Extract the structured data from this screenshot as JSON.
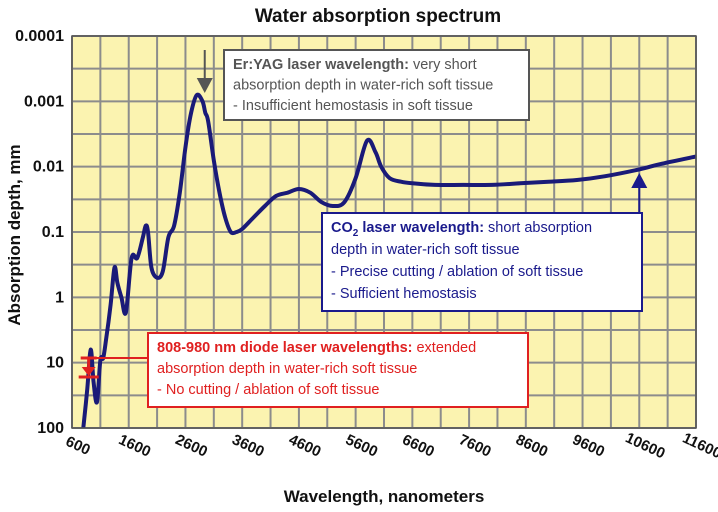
{
  "chart_data": {
    "type": "line",
    "title": "Water absorption spectrum",
    "xlabel": "Wavelength, nanometers",
    "ylabel": "Absorption depth, mm",
    "xlim": [
      600,
      11600
    ],
    "ylim": [
      0.0001,
      100
    ],
    "y_scale": "log",
    "y_axis_inverted": true,
    "grid": true,
    "background_color": "#fbf3b0",
    "grid_color": "#8c8c8c",
    "line_color": "#1a1a78",
    "x_ticks": [
      "600",
      "1600",
      "2600",
      "3600",
      "4600",
      "5600",
      "6600",
      "7600",
      "8600",
      "9600",
      "10600",
      "11600"
    ],
    "y_ticks": [
      "0.0001",
      "0.001",
      "0.01",
      "0.1",
      "1",
      "10",
      "100"
    ],
    "series": [
      {
        "x": [
          800,
          870,
          930,
          980,
          1040,
          1100,
          1150,
          1200,
          1280,
          1350,
          1400,
          1470,
          1550,
          1650,
          1750,
          1850,
          1900,
          1940,
          2000,
          2100,
          2200,
          2300,
          2400,
          2500,
          2600,
          2700,
          2800,
          2900,
          2950,
          3000,
          3100,
          3200,
          3300,
          3400,
          3500,
          3600,
          3800,
          4000,
          4200,
          4400,
          4600,
          4800,
          5000,
          5200,
          5400,
          5600,
          5800,
          5950,
          6050,
          6200,
          6400,
          6600,
          7000,
          7500,
          8000,
          8500,
          9000,
          9500,
          10000,
          10600,
          11000,
          11600
        ],
        "y": [
          100,
          25,
          6.3,
          20,
          40,
          9.1,
          8.5,
          4.5,
          1.3,
          0.35,
          0.6,
          1.0,
          1.7,
          0.25,
          0.25,
          0.12,
          0.08,
          0.1,
          0.35,
          0.5,
          0.4,
          0.12,
          0.08,
          0.025,
          0.005,
          0.0015,
          0.0008,
          0.001,
          0.0015,
          0.002,
          0.008,
          0.025,
          0.06,
          0.1,
          0.1,
          0.09,
          0.06,
          0.04,
          0.028,
          0.025,
          0.022,
          0.025,
          0.035,
          0.04,
          0.035,
          0.015,
          0.004,
          0.006,
          0.01,
          0.015,
          0.017,
          0.018,
          0.019,
          0.019,
          0.019,
          0.018,
          0.017,
          0.016,
          0.014,
          0.011,
          0.009,
          0.007
        ]
      }
    ],
    "annotations": [
      {
        "id": "eryag",
        "color": "#555555",
        "arrow_x": 2940,
        "lines": [
          [
            {
              "text": "Er:YAG laser wavelength:",
              "bold": true
            },
            {
              "text": " very short",
              "bold": false
            }
          ],
          [
            {
              "text": "absorption depth in water-rich soft tissue",
              "bold": false
            }
          ],
          [
            {
              "text": "- Insufficient hemostasis in soft tissue",
              "bold": false
            }
          ]
        ]
      },
      {
        "id": "co2",
        "color": "#1a1a8c",
        "arrow_x": 10600,
        "lines": [
          [
            {
              "text": "CO",
              "bold": true
            },
            {
              "text": "2",
              "bold": true,
              "sub": true
            },
            {
              "text": " laser wavelength:",
              "bold": true
            },
            {
              "text": " short absorption",
              "bold": false
            }
          ],
          [
            {
              "text": "depth in water-rich soft tissue",
              "bold": false
            }
          ],
          [
            {
              "text": "- Precise cutting / ablation of soft tissue",
              "bold": false
            }
          ],
          [
            {
              "text": "- Sufficient hemostasis",
              "bold": false
            }
          ]
        ]
      },
      {
        "id": "diode",
        "color": "#e02020",
        "arrow_x": 894,
        "lines": [
          [
            {
              "text": "808-980 nm diode laser wavelengths:",
              "bold": true
            },
            {
              "text": " extended",
              "bold": false
            }
          ],
          [
            {
              "text": "absorption depth in water-rich soft tissue",
              "bold": false
            }
          ],
          [
            {
              "text": "- No cutting / ablation of soft tissue",
              "bold": false
            }
          ]
        ]
      }
    ]
  }
}
